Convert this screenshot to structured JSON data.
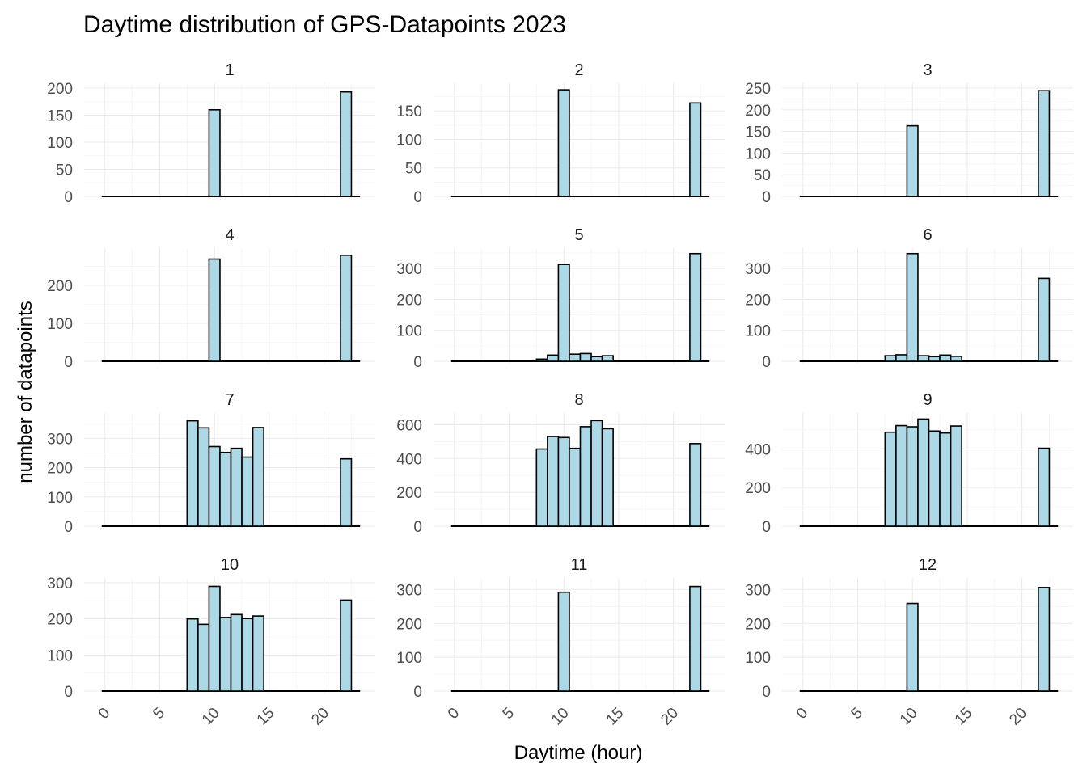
{
  "chart_data": {
    "type": "bar",
    "title": "Daytime distribution of GPS-Datapoints 2023",
    "xlabel": "Daytime (hour)",
    "ylabel": "number of datapoints",
    "x_ticks": [
      0,
      5,
      10,
      15,
      20
    ],
    "xlim": [
      -0.5,
      23.5
    ],
    "bin_width": 1,
    "facets": [
      {
        "label": "1",
        "y_ticks": [
          0,
          50,
          100,
          150,
          200
        ],
        "ylim": [
          0,
          200
        ],
        "bins": [
          {
            "hour": 10,
            "count": 160
          },
          {
            "hour": 22,
            "count": 193
          }
        ]
      },
      {
        "label": "2",
        "y_ticks": [
          0,
          50,
          100,
          150
        ],
        "ylim": [
          0,
          190
        ],
        "bins": [
          {
            "hour": 10,
            "count": 187
          },
          {
            "hour": 22,
            "count": 164
          }
        ]
      },
      {
        "label": "3",
        "y_ticks": [
          0,
          50,
          100,
          150,
          200,
          250
        ],
        "ylim": [
          0,
          250
        ],
        "bins": [
          {
            "hour": 10,
            "count": 163
          },
          {
            "hour": 22,
            "count": 244
          }
        ]
      },
      {
        "label": "4",
        "y_ticks": [
          0,
          100,
          200
        ],
        "ylim": [
          0,
          285
        ],
        "bins": [
          {
            "hour": 10,
            "count": 269
          },
          {
            "hour": 22,
            "count": 279
          }
        ]
      },
      {
        "label": "5",
        "y_ticks": [
          0,
          100,
          200,
          300
        ],
        "ylim": [
          0,
          350
        ],
        "bins": [
          {
            "hour": 8,
            "count": 7
          },
          {
            "hour": 9,
            "count": 20
          },
          {
            "hour": 10,
            "count": 313
          },
          {
            "hour": 11,
            "count": 23
          },
          {
            "hour": 12,
            "count": 25
          },
          {
            "hour": 13,
            "count": 15
          },
          {
            "hour": 14,
            "count": 18
          },
          {
            "hour": 22,
            "count": 348
          }
        ]
      },
      {
        "label": "6",
        "y_ticks": [
          0,
          100,
          200,
          300
        ],
        "ylim": [
          0,
          350
        ],
        "bins": [
          {
            "hour": 8,
            "count": 18
          },
          {
            "hour": 9,
            "count": 21
          },
          {
            "hour": 10,
            "count": 348
          },
          {
            "hour": 11,
            "count": 18
          },
          {
            "hour": 12,
            "count": 15
          },
          {
            "hour": 13,
            "count": 20
          },
          {
            "hour": 14,
            "count": 16
          },
          {
            "hour": 22,
            "count": 268
          }
        ]
      },
      {
        "label": "7",
        "y_ticks": [
          0,
          100,
          200,
          300
        ],
        "ylim": [
          0,
          370
        ],
        "bins": [
          {
            "hour": 8,
            "count": 360
          },
          {
            "hour": 9,
            "count": 336
          },
          {
            "hour": 10,
            "count": 272
          },
          {
            "hour": 11,
            "count": 252
          },
          {
            "hour": 12,
            "count": 266
          },
          {
            "hour": 13,
            "count": 236
          },
          {
            "hour": 14,
            "count": 337
          },
          {
            "hour": 22,
            "count": 230
          }
        ]
      },
      {
        "label": "8",
        "y_ticks": [
          0,
          200,
          400,
          600
        ],
        "ylim": [
          0,
          640
        ],
        "bins": [
          {
            "hour": 8,
            "count": 456
          },
          {
            "hour": 9,
            "count": 530
          },
          {
            "hour": 10,
            "count": 524
          },
          {
            "hour": 11,
            "count": 460
          },
          {
            "hour": 12,
            "count": 588
          },
          {
            "hour": 13,
            "count": 624
          },
          {
            "hour": 14,
            "count": 576
          },
          {
            "hour": 22,
            "count": 488
          }
        ]
      },
      {
        "label": "9",
        "y_ticks": [
          0,
          200,
          400
        ],
        "ylim": [
          0,
          560
        ],
        "bins": [
          {
            "hour": 8,
            "count": 486
          },
          {
            "hour": 9,
            "count": 520
          },
          {
            "hour": 10,
            "count": 514
          },
          {
            "hour": 11,
            "count": 554
          },
          {
            "hour": 12,
            "count": 492
          },
          {
            "hour": 13,
            "count": 482
          },
          {
            "hour": 14,
            "count": 518
          },
          {
            "hour": 22,
            "count": 403
          }
        ]
      },
      {
        "label": "10",
        "y_ticks": [
          0,
          100,
          200,
          300
        ],
        "ylim": [
          0,
          300
        ],
        "bins": [
          {
            "hour": 8,
            "count": 200
          },
          {
            "hour": 9,
            "count": 185
          },
          {
            "hour": 10,
            "count": 290
          },
          {
            "hour": 11,
            "count": 204
          },
          {
            "hour": 12,
            "count": 212
          },
          {
            "hour": 13,
            "count": 201
          },
          {
            "hour": 14,
            "count": 208
          },
          {
            "hour": 22,
            "count": 252
          }
        ]
      },
      {
        "label": "11",
        "y_ticks": [
          0,
          100,
          200,
          300
        ],
        "ylim": [
          0,
          320
        ],
        "bins": [
          {
            "hour": 10,
            "count": 292
          },
          {
            "hour": 22,
            "count": 309
          }
        ]
      },
      {
        "label": "12",
        "y_ticks": [
          0,
          100,
          200,
          300
        ],
        "ylim": [
          0,
          320
        ],
        "bins": [
          {
            "hour": 10,
            "count": 259
          },
          {
            "hour": 22,
            "count": 306
          }
        ]
      }
    ]
  }
}
